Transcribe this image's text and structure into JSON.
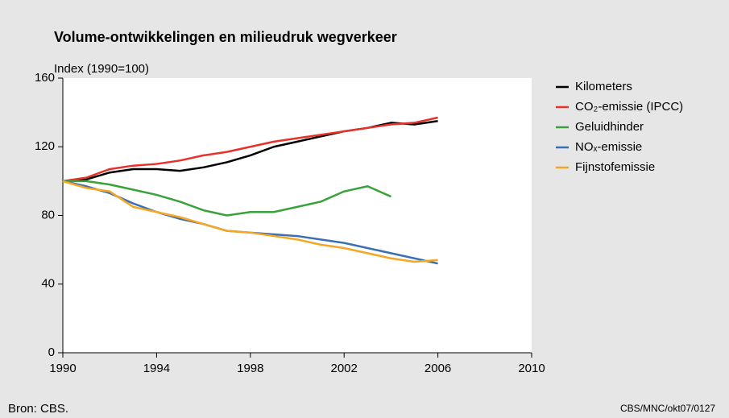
{
  "chart_data": {
    "type": "line",
    "title": "Volume-ontwikkelingen en milieudruk wegverkeer",
    "y_label": "Index (1990=100)",
    "source": "Bron: CBS.",
    "credit": "CBS/MNC/okt07/0127",
    "x": [
      1990,
      1991,
      1992,
      1993,
      1994,
      1995,
      1996,
      1997,
      1998,
      1999,
      2000,
      2001,
      2002,
      2003,
      2004,
      2005,
      2006
    ],
    "series": [
      {
        "name": "Kilometers",
        "color": "#000000",
        "values": [
          100,
          101,
          105,
          107,
          107,
          106,
          108,
          111,
          115,
          120,
          123,
          126,
          129,
          131,
          134,
          133,
          135
        ]
      },
      {
        "name": "CO₂-emissie (IPCC)",
        "color": "#e8312a",
        "values": [
          100,
          102,
          107,
          109,
          110,
          112,
          115,
          117,
          120,
          123,
          125,
          127,
          129,
          131,
          133,
          134,
          137
        ]
      },
      {
        "name": "Geluidhinder",
        "color": "#3aa23a",
        "values": [
          100,
          100,
          98,
          95,
          92,
          88,
          83,
          80,
          82,
          82,
          85,
          88,
          94,
          97,
          91,
          null,
          null
        ]
      },
      {
        "name": "NOₓ-emissie",
        "color": "#3a6fb5",
        "values": [
          100,
          97,
          93,
          87,
          82,
          78,
          75,
          71,
          70,
          69,
          68,
          66,
          64,
          61,
          58,
          55,
          52
        ]
      },
      {
        "name": "Fijnstofemissie",
        "color": "#f5a623",
        "values": [
          100,
          96,
          94,
          85,
          82,
          79,
          75,
          71,
          70,
          68,
          66,
          63,
          61,
          58,
          55,
          53,
          54
        ]
      }
    ],
    "xlim": [
      1990,
      2010
    ],
    "xticks": [
      1990,
      1994,
      1998,
      2002,
      2006,
      2010
    ],
    "ylim": [
      0,
      160
    ],
    "yticks": [
      0,
      40,
      80,
      120,
      160
    ],
    "grid": false,
    "legend": "right"
  }
}
